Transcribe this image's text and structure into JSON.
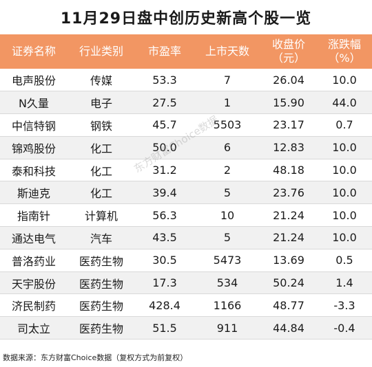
{
  "title": "11月29日盘中创历史新高个股一览",
  "header_color": "#f29663",
  "columns": [
    {
      "line1": "证券名称",
      "line2": ""
    },
    {
      "line1": "行业类别",
      "line2": ""
    },
    {
      "line1": "市盈率",
      "line2": ""
    },
    {
      "line1": "上市天数",
      "line2": ""
    },
    {
      "line1": "收盘价",
      "line2": "（元）"
    },
    {
      "line1": "涨跌幅",
      "line2": "（%）"
    }
  ],
  "rows": [
    [
      "电声股份",
      "传媒",
      "53.3",
      "7",
      "26.04",
      "10.0"
    ],
    [
      "N久量",
      "电子",
      "27.5",
      "1",
      "15.90",
      "44.0"
    ],
    [
      "中信特钢",
      "钢铁",
      "45.7",
      "5503",
      "23.17",
      "0.7"
    ],
    [
      "锦鸡股份",
      "化工",
      "50.0",
      "6",
      "12.83",
      "10.0"
    ],
    [
      "泰和科技",
      "化工",
      "31.2",
      "2",
      "48.18",
      "10.0"
    ],
    [
      "斯迪克",
      "化工",
      "39.4",
      "5",
      "23.76",
      "10.0"
    ],
    [
      "指南针",
      "计算机",
      "56.3",
      "10",
      "21.24",
      "10.0"
    ],
    [
      "通达电气",
      "汽车",
      "43.5",
      "5",
      "21.24",
      "10.0"
    ],
    [
      "普洛药业",
      "医药生物",
      "30.5",
      "5473",
      "13.69",
      "0.5"
    ],
    [
      "天宇股份",
      "医药生物",
      "17.3",
      "534",
      "50.24",
      "1.4"
    ],
    [
      "济民制药",
      "医药生物",
      "428.4",
      "1166",
      "48.77",
      "-3.3"
    ],
    [
      "司太立",
      "医药生物",
      "51.5",
      "911",
      "44.84",
      "-0.4"
    ]
  ],
  "footer": "数据来源：东方财富Choice数据（复权方式为前复权）",
  "watermark": "东方财富Choice数据"
}
